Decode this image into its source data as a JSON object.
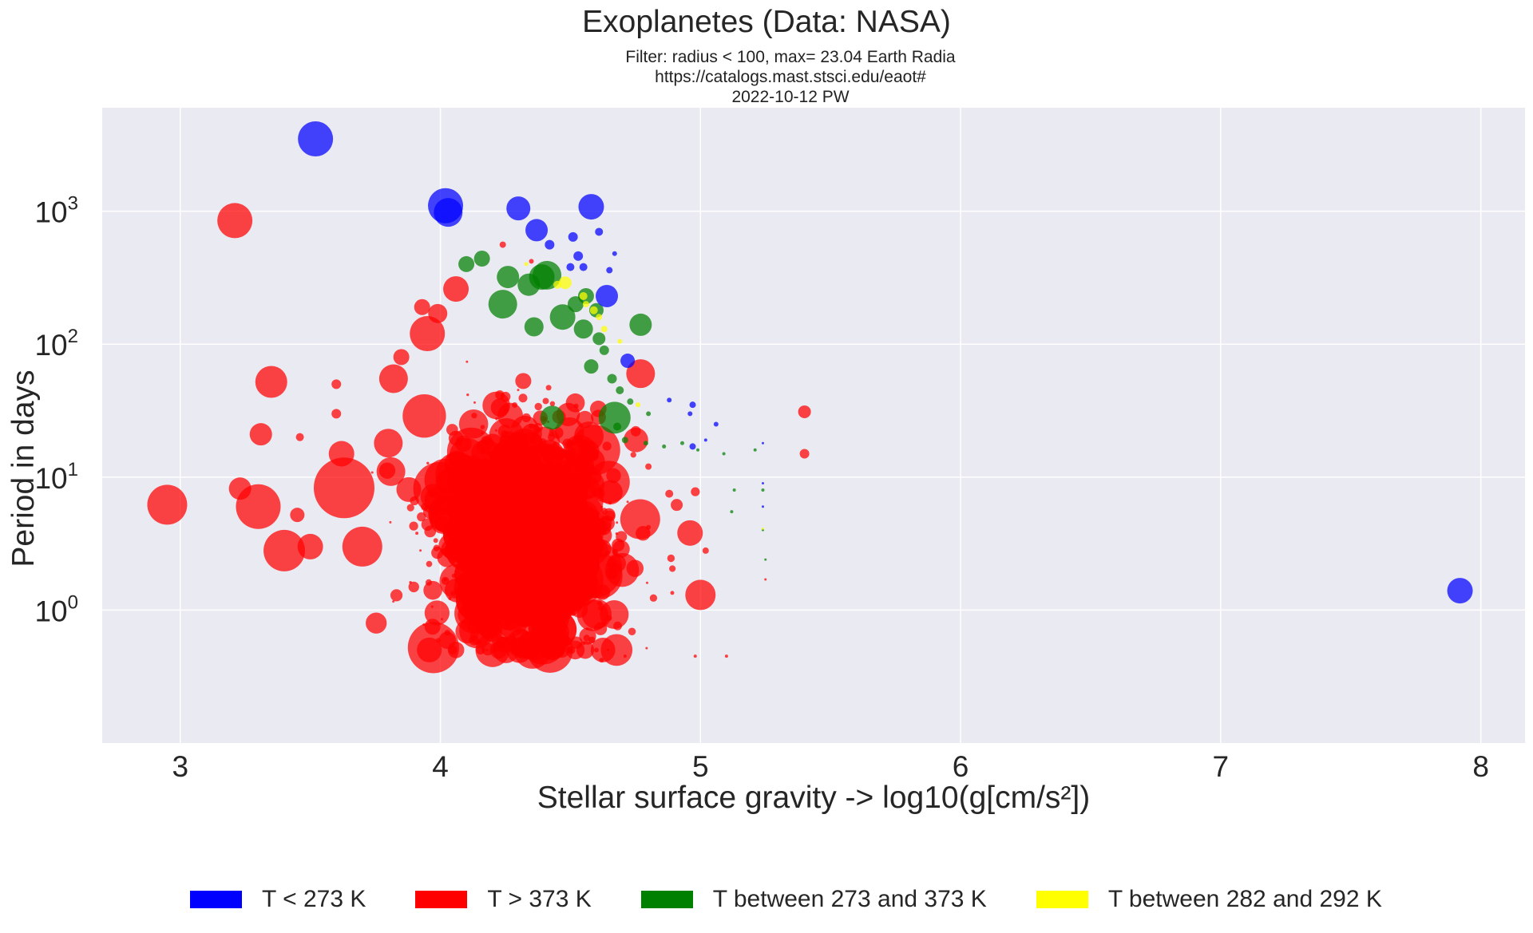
{
  "chart_data": {
    "type": "scatter",
    "title": "Exoplanetes (Data: NASA)",
    "subtitle_lines": [
      "Filter: radius < 100, max= 23.04  Earth Radia",
      "https://catalogs.mast.stsci.edu/eaot#",
      "2022-10-12 PW"
    ],
    "xlabel": "Stellar surface gravity -> log10(g[cm/s²])",
    "ylabel": "Period in days",
    "xlim": [
      2.7,
      8.17
    ],
    "ylim": [
      0.1,
      6000
    ],
    "yscale": "log",
    "x_ticks": [
      "3",
      "4",
      "5",
      "6",
      "7",
      "8"
    ],
    "y_ticks": [
      {
        "base": "10",
        "exp": "0"
      },
      {
        "base": "10",
        "exp": "1"
      },
      {
        "base": "10",
        "exp": "2"
      },
      {
        "base": "10",
        "exp": "3"
      }
    ],
    "grid": true,
    "legend_position": "bottom",
    "colors": {
      "background": "#eaeaf2",
      "grid": "#ffffff",
      "blue": "#0000ff",
      "red": "#ff0000",
      "green": "#008000",
      "yellow": "#ffff00"
    },
    "series": [
      {
        "name": "T < 273 K",
        "color": "#0000ff",
        "points": [
          {
            "x": 3.52,
            "y": 3500,
            "r": 22
          },
          {
            "x": 4.02,
            "y": 1100,
            "r": 22
          },
          {
            "x": 4.03,
            "y": 980,
            "r": 18
          },
          {
            "x": 4.3,
            "y": 1050,
            "r": 15
          },
          {
            "x": 4.37,
            "y": 720,
            "r": 14
          },
          {
            "x": 4.58,
            "y": 1080,
            "r": 16
          },
          {
            "x": 4.42,
            "y": 560,
            "r": 6
          },
          {
            "x": 4.51,
            "y": 640,
            "r": 6
          },
          {
            "x": 4.61,
            "y": 700,
            "r": 5
          },
          {
            "x": 4.53,
            "y": 460,
            "r": 6
          },
          {
            "x": 4.55,
            "y": 380,
            "r": 5
          },
          {
            "x": 4.65,
            "y": 360,
            "r": 4
          },
          {
            "x": 4.67,
            "y": 480,
            "r": 3
          },
          {
            "x": 4.5,
            "y": 380,
            "r": 5
          },
          {
            "x": 4.64,
            "y": 230,
            "r": 14
          },
          {
            "x": 4.72,
            "y": 75,
            "r": 9
          },
          {
            "x": 4.88,
            "y": 38,
            "r": 3
          },
          {
            "x": 4.97,
            "y": 35,
            "r": 4
          },
          {
            "x": 4.96,
            "y": 30,
            "r": 3
          },
          {
            "x": 5.06,
            "y": 25,
            "r": 3
          },
          {
            "x": 4.97,
            "y": 17,
            "r": 4
          },
          {
            "x": 5.02,
            "y": 19,
            "r": 2
          },
          {
            "x": 5.24,
            "y": 18,
            "r": 1.5
          },
          {
            "x": 5.24,
            "y": 9,
            "r": 1.5
          },
          {
            "x": 5.24,
            "y": 6,
            "r": 1.5
          },
          {
            "x": 7.92,
            "y": 1.4,
            "r": 16
          }
        ]
      },
      {
        "name": "T > 373 K",
        "color": "#ff0000",
        "points": [
          {
            "x": 3.21,
            "y": 850,
            "r": 22
          },
          {
            "x": 2.95,
            "y": 6.2,
            "r": 25
          },
          {
            "x": 3.35,
            "y": 52,
            "r": 20
          },
          {
            "x": 3.31,
            "y": 21,
            "r": 14
          },
          {
            "x": 3.23,
            "y": 8.2,
            "r": 14
          },
          {
            "x": 3.3,
            "y": 6.0,
            "r": 28
          },
          {
            "x": 3.4,
            "y": 2.8,
            "r": 26
          },
          {
            "x": 3.5,
            "y": 3.0,
            "r": 16
          },
          {
            "x": 3.45,
            "y": 5.2,
            "r": 9
          },
          {
            "x": 3.63,
            "y": 8.3,
            "r": 38
          },
          {
            "x": 3.62,
            "y": 15,
            "r": 16
          },
          {
            "x": 3.7,
            "y": 3.0,
            "r": 25
          },
          {
            "x": 3.82,
            "y": 55,
            "r": 18
          },
          {
            "x": 3.81,
            "y": 11,
            "r": 18
          },
          {
            "x": 3.8,
            "y": 18,
            "r": 18
          },
          {
            "x": 3.95,
            "y": 120,
            "r": 22
          },
          {
            "x": 4.06,
            "y": 260,
            "r": 16
          },
          {
            "x": 3.99,
            "y": 170,
            "r": 12
          },
          {
            "x": 3.93,
            "y": 190,
            "r": 10
          },
          {
            "x": 3.85,
            "y": 80,
            "r": 10
          },
          {
            "x": 3.6,
            "y": 50,
            "r": 6
          },
          {
            "x": 3.6,
            "y": 30,
            "r": 6
          },
          {
            "x": 3.46,
            "y": 20,
            "r": 5
          },
          {
            "x": 3.97,
            "y": 0.75,
            "r": 10
          },
          {
            "x": 4.14,
            "y": 0.7,
            "r": 22
          },
          {
            "x": 5.0,
            "y": 1.3,
            "r": 19
          },
          {
            "x": 4.96,
            "y": 3.8,
            "r": 16
          },
          {
            "x": 4.77,
            "y": 60,
            "r": 18
          },
          {
            "x": 5.4,
            "y": 31,
            "r": 8
          },
          {
            "x": 5.4,
            "y": 15,
            "r": 6
          },
          {
            "x": 4.62,
            "y": 0.42,
            "r": 3
          },
          {
            "x": 4.6,
            "y": 0.5,
            "r": 3
          },
          {
            "x": 4.5,
            "y": 0.5,
            "r": 3
          },
          {
            "x": 4.35,
            "y": 0.55,
            "r": 4
          },
          {
            "x": 4.71,
            "y": 0.45,
            "r": 2
          },
          {
            "x": 4.98,
            "y": 0.45,
            "r": 2
          },
          {
            "x": 5.1,
            "y": 0.45,
            "r": 2
          },
          {
            "x": 5.02,
            "y": 2.8,
            "r": 4
          },
          {
            "x": 4.8,
            "y": 4.2,
            "r": 3
          },
          {
            "x": 4.88,
            "y": 7.5,
            "r": 5
          },
          {
            "x": 4.8,
            "y": 12,
            "r": 4
          },
          {
            "x": 5.25,
            "y": 1.7,
            "r": 1.5
          },
          {
            "x": 4.24,
            "y": 560,
            "r": 4
          },
          {
            "x": 4.35,
            "y": 420,
            "r": 3
          }
        ]
      },
      {
        "name": "T between 273 and 373 K",
        "color": "#008000",
        "points": [
          {
            "x": 4.1,
            "y": 400,
            "r": 10
          },
          {
            "x": 4.16,
            "y": 440,
            "r": 10
          },
          {
            "x": 4.26,
            "y": 320,
            "r": 14
          },
          {
            "x": 4.39,
            "y": 320,
            "r": 16
          },
          {
            "x": 4.41,
            "y": 330,
            "r": 18
          },
          {
            "x": 4.34,
            "y": 280,
            "r": 14
          },
          {
            "x": 4.24,
            "y": 200,
            "r": 18
          },
          {
            "x": 4.47,
            "y": 160,
            "r": 16
          },
          {
            "x": 4.56,
            "y": 230,
            "r": 10
          },
          {
            "x": 4.52,
            "y": 200,
            "r": 10
          },
          {
            "x": 4.6,
            "y": 180,
            "r": 9
          },
          {
            "x": 4.36,
            "y": 135,
            "r": 12
          },
          {
            "x": 4.77,
            "y": 140,
            "r": 14
          },
          {
            "x": 4.43,
            "y": 28,
            "r": 15
          },
          {
            "x": 4.67,
            "y": 28,
            "r": 20
          },
          {
            "x": 4.55,
            "y": 130,
            "r": 12
          },
          {
            "x": 4.61,
            "y": 110,
            "r": 8
          },
          {
            "x": 4.63,
            "y": 90,
            "r": 6
          },
          {
            "x": 4.58,
            "y": 68,
            "r": 9
          },
          {
            "x": 4.66,
            "y": 55,
            "r": 6
          },
          {
            "x": 4.69,
            "y": 45,
            "r": 5
          },
          {
            "x": 4.73,
            "y": 37,
            "r": 4
          },
          {
            "x": 4.8,
            "y": 30,
            "r": 3
          },
          {
            "x": 4.68,
            "y": 24,
            "r": 5
          },
          {
            "x": 4.71,
            "y": 19,
            "r": 4
          },
          {
            "x": 4.79,
            "y": 18,
            "r": 3
          },
          {
            "x": 4.86,
            "y": 17,
            "r": 2.5
          },
          {
            "x": 4.93,
            "y": 18,
            "r": 2.5
          },
          {
            "x": 4.99,
            "y": 16,
            "r": 2
          },
          {
            "x": 5.09,
            "y": 15,
            "r": 2
          },
          {
            "x": 5.13,
            "y": 8,
            "r": 2
          },
          {
            "x": 5.24,
            "y": 8,
            "r": 2
          },
          {
            "x": 5.12,
            "y": 5.5,
            "r": 2
          },
          {
            "x": 5.24,
            "y": 4,
            "r": 1.5
          },
          {
            "x": 5.25,
            "y": 2.4,
            "r": 1.5
          },
          {
            "x": 5.21,
            "y": 16,
            "r": 2
          }
        ]
      },
      {
        "name": "T between 282 and 292 K",
        "color": "#ffff00",
        "points": [
          {
            "x": 4.48,
            "y": 290,
            "r": 8
          },
          {
            "x": 4.45,
            "y": 280,
            "r": 5
          },
          {
            "x": 4.55,
            "y": 230,
            "r": 5
          },
          {
            "x": 4.56,
            "y": 200,
            "r": 4
          },
          {
            "x": 4.59,
            "y": 180,
            "r": 5
          },
          {
            "x": 4.61,
            "y": 160,
            "r": 4
          },
          {
            "x": 4.63,
            "y": 130,
            "r": 4
          },
          {
            "x": 4.33,
            "y": 400,
            "r": 2.5
          },
          {
            "x": 4.69,
            "y": 105,
            "r": 3
          },
          {
            "x": 4.76,
            "y": 35,
            "r": 3
          },
          {
            "x": 5.24,
            "y": 4.1,
            "r": 1.5
          }
        ]
      }
    ]
  }
}
